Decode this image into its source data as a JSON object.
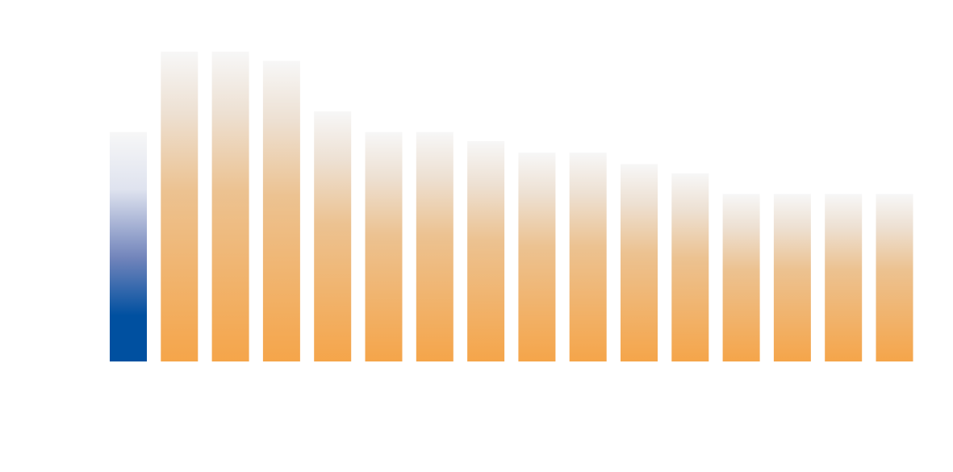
{
  "chart_data": {
    "type": "bar",
    "values": [
      100,
      135,
      135,
      131,
      109,
      100,
      100,
      96,
      91,
      91,
      86,
      82,
      73,
      73,
      73,
      73
    ],
    "highlight_index": 0,
    "ylim": [
      0,
      135
    ],
    "grid": false,
    "colors": {
      "highlight": "#0050a0",
      "bar": "#f5a54a",
      "fade": "#f7f7f7"
    }
  }
}
